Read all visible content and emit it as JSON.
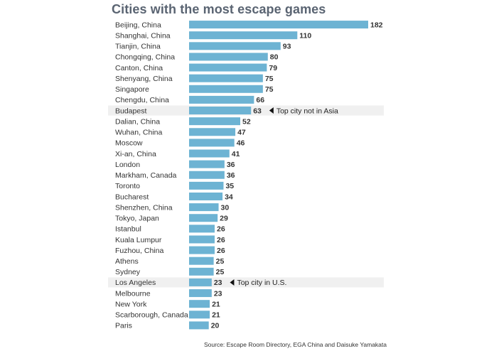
{
  "title": "Cities with the most escape games",
  "source": "Source: Escape Room Directory, EGA China and Daisuke Yamakata",
  "colors": {
    "bar": "#6db3d3",
    "highlight": "#f0f0f0",
    "label": "#333333",
    "value": "#333333",
    "title": "#5a6472"
  },
  "chart_data": {
    "type": "bar",
    "orientation": "horizontal",
    "title": "Cities with the most escape games",
    "categories": [
      "Beijing, China",
      "Shanghai, China",
      "Tianjin, China",
      "Chongqing, China",
      "Canton, China",
      "Shenyang, China",
      "Singapore",
      "Chengdu, China",
      "Budapest",
      "Dalian, China",
      "Wuhan, China",
      "Moscow",
      "Xi-an, China",
      "London",
      "Markham, Canada",
      "Toronto",
      "Bucharest",
      "Shenzhen, China",
      "Tokyo, Japan",
      "Istanbul",
      "Kuala Lumpur",
      "Fuzhou, China",
      "Athens",
      "Sydney",
      "Los Angeles",
      "Melbourne",
      "New York",
      "Scarborough, Canada",
      "Paris"
    ],
    "values": [
      182,
      110,
      93,
      80,
      79,
      75,
      75,
      66,
      63,
      52,
      47,
      46,
      41,
      36,
      36,
      35,
      34,
      30,
      29,
      26,
      26,
      26,
      25,
      25,
      23,
      23,
      21,
      21,
      20
    ],
    "xlim": [
      0,
      182
    ],
    "grid": false,
    "legend": "none",
    "annotations": [
      {
        "category": "Budapest",
        "text": "Top city not in Asia"
      },
      {
        "category": "Los Angeles",
        "text": "Top city in U.S."
      }
    ]
  }
}
